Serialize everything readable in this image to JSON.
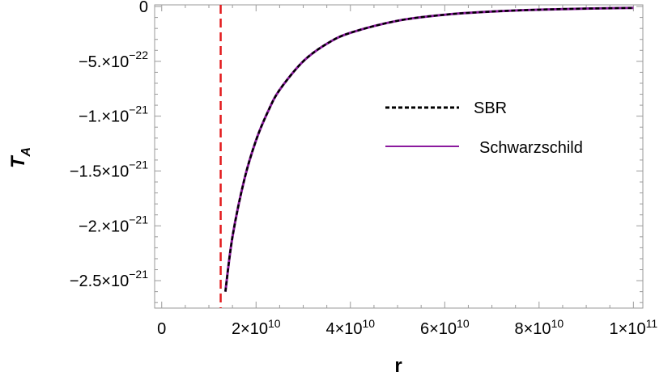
{
  "chart_data": {
    "type": "line",
    "xlabel": "r",
    "ylabel": "T",
    "ylabel_sub": "A",
    "xlim": [
      -1500000000.0,
      102000000000.0
    ],
    "ylim": [
      -2.75e-21,
      1.5e-23
    ],
    "x_ticks": [
      {
        "value": 0,
        "base": "0",
        "exp": ""
      },
      {
        "value": 20000000000.0,
        "base": "2×10",
        "exp": "10"
      },
      {
        "value": 40000000000.0,
        "base": "4×10",
        "exp": "10"
      },
      {
        "value": 60000000000.0,
        "base": "6×10",
        "exp": "10"
      },
      {
        "value": 80000000000.0,
        "base": "8×10",
        "exp": "10"
      },
      {
        "value": 100000000000.0,
        "base": "1×10",
        "exp": "11"
      }
    ],
    "y_ticks": [
      {
        "value": 0,
        "base": "0",
        "exp": ""
      },
      {
        "value": -5e-22,
        "base": "−5.×10",
        "exp": "−22"
      },
      {
        "value": -1e-21,
        "base": "−1.×10",
        "exp": "−21"
      },
      {
        "value": -1.5e-21,
        "base": "−1.5×10",
        "exp": "−21"
      },
      {
        "value": -2e-21,
        "base": "−2.×10",
        "exp": "−21"
      },
      {
        "value": -2.5e-21,
        "base": "−2.5×10",
        "exp": "−21"
      }
    ],
    "vline": {
      "x": 12500000000.0,
      "color": "#e31a1c",
      "style": "dashed"
    },
    "series": [
      {
        "name": "SBR",
        "color": "#000000",
        "style": "dashed",
        "x": [
          13500000000.0,
          15000000000.0,
          17500000000.0,
          20000000000.0,
          22500000000.0,
          25000000000.0,
          30000000000.0,
          35000000000.0,
          40000000000.0,
          50000000000.0,
          60000000000.0,
          70000000000.0,
          80000000000.0,
          90000000000.0,
          100000000000.0
        ],
        "y": [
          -2.6e-21,
          -2.1e-21,
          -1.58e-21,
          -1.22e-21,
          -9.6e-22,
          -7.6e-22,
          -5e-22,
          -3.4e-22,
          -2.4e-22,
          -1.3e-22,
          -7.5e-23,
          -4.6e-23,
          -2.9e-23,
          -1.9e-23,
          -1.3e-23
        ]
      },
      {
        "name": "Schwarzschild",
        "color": "#8b1a9e",
        "style": "solid",
        "x": [
          13500000000.0,
          15000000000.0,
          17500000000.0,
          20000000000.0,
          22500000000.0,
          25000000000.0,
          30000000000.0,
          35000000000.0,
          40000000000.0,
          50000000000.0,
          60000000000.0,
          70000000000.0,
          80000000000.0,
          90000000000.0,
          100000000000.0
        ],
        "y": [
          -2.6e-21,
          -2.1e-21,
          -1.58e-21,
          -1.22e-21,
          -9.6e-22,
          -7.6e-22,
          -5e-22,
          -3.4e-22,
          -2.4e-22,
          -1.3e-22,
          -7.5e-23,
          -4.6e-23,
          -2.9e-23,
          -1.9e-23,
          -1.3e-23
        ]
      }
    ],
    "legend": {
      "placement": "right"
    },
    "grid": false
  }
}
